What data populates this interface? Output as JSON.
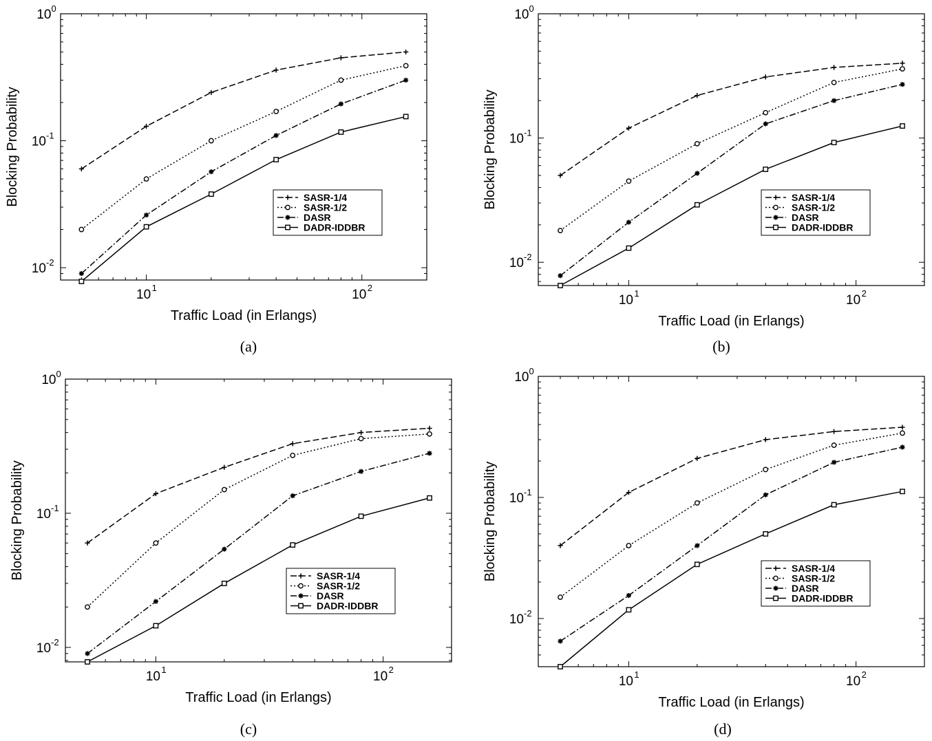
{
  "chart_data": [
    {
      "panel": "a",
      "caption": "(a)",
      "type": "line",
      "xscale": "log",
      "yscale": "log",
      "xlabel": "Traffic Load (in Erlangs)",
      "ylabel": "Blocking Probability",
      "xlim": [
        4,
        200
      ],
      "ylim": [
        0.008,
        1
      ],
      "x_ticks": [
        {
          "v": 10,
          "base": "10",
          "exp": "1"
        },
        {
          "v": 100,
          "base": "10",
          "exp": "2"
        }
      ],
      "y_ticks": [
        {
          "v": 0.01,
          "base": "10",
          "exp": "-2"
        },
        {
          "v": 0.1,
          "base": "10",
          "exp": "-1"
        },
        {
          "v": 1,
          "base": "10",
          "exp": "0"
        }
      ],
      "grid": false,
      "legend_position": "center-right",
      "x": [
        5,
        10,
        20,
        40,
        80,
        160
      ],
      "series": [
        {
          "name": "SASR-1/4",
          "values": [
            0.06,
            0.13,
            0.24,
            0.36,
            0.45,
            0.5
          ]
        },
        {
          "name": "SASR-1/2",
          "values": [
            0.02,
            0.05,
            0.1,
            0.17,
            0.3,
            0.39
          ]
        },
        {
          "name": "DASR",
          "values": [
            0.009,
            0.026,
            0.057,
            0.11,
            0.195,
            0.3
          ]
        },
        {
          "name": "DADR-IDDBR",
          "values": [
            0.0078,
            0.021,
            0.038,
            0.071,
            0.117,
            0.155
          ]
        }
      ]
    },
    {
      "panel": "b",
      "caption": "(b)",
      "type": "line",
      "xscale": "log",
      "yscale": "log",
      "xlabel": "Traffic Load (in Erlangs)",
      "ylabel": "Blocking Probability",
      "xlim": [
        4,
        200
      ],
      "ylim": [
        0.0065,
        1
      ],
      "x_ticks": [
        {
          "v": 10,
          "base": "10",
          "exp": "1"
        },
        {
          "v": 100,
          "base": "10",
          "exp": "2"
        }
      ],
      "y_ticks": [
        {
          "v": 0.01,
          "base": "10",
          "exp": "-2"
        },
        {
          "v": 0.1,
          "base": "10",
          "exp": "-1"
        },
        {
          "v": 1,
          "base": "10",
          "exp": "0"
        }
      ],
      "grid": false,
      "legend_position": "center-right",
      "x": [
        5,
        10,
        20,
        40,
        80,
        160
      ],
      "series": [
        {
          "name": "SASR-1/4",
          "values": [
            0.05,
            0.12,
            0.22,
            0.31,
            0.37,
            0.4
          ]
        },
        {
          "name": "SASR-1/2",
          "values": [
            0.018,
            0.045,
            0.09,
            0.16,
            0.28,
            0.36
          ]
        },
        {
          "name": "DASR",
          "values": [
            0.0078,
            0.021,
            0.052,
            0.13,
            0.2,
            0.27
          ]
        },
        {
          "name": "DADR-IDDBR",
          "values": [
            0.0065,
            0.013,
            0.029,
            0.056,
            0.092,
            0.125
          ]
        }
      ]
    },
    {
      "panel": "c",
      "caption": "(c)",
      "type": "line",
      "xscale": "log",
      "yscale": "log",
      "xlabel": "Traffic Load (in Erlangs)",
      "ylabel": "Blocking Probability",
      "xlim": [
        4,
        200
      ],
      "ylim": [
        0.0078,
        1
      ],
      "x_ticks": [
        {
          "v": 10,
          "base": "10",
          "exp": "1"
        },
        {
          "v": 100,
          "base": "10",
          "exp": "2"
        }
      ],
      "y_ticks": [
        {
          "v": 0.01,
          "base": "10",
          "exp": "-2"
        },
        {
          "v": 0.1,
          "base": "10",
          "exp": "-1"
        },
        {
          "v": 1,
          "base": "10",
          "exp": "0"
        }
      ],
      "grid": false,
      "legend_position": "bottom-right",
      "x": [
        5,
        10,
        20,
        40,
        80,
        160
      ],
      "series": [
        {
          "name": "SASR-1/4",
          "values": [
            0.06,
            0.14,
            0.22,
            0.33,
            0.4,
            0.43
          ]
        },
        {
          "name": "SASR-1/2",
          "values": [
            0.02,
            0.06,
            0.15,
            0.27,
            0.36,
            0.39
          ]
        },
        {
          "name": "DASR",
          "values": [
            0.009,
            0.022,
            0.054,
            0.135,
            0.205,
            0.28
          ]
        },
        {
          "name": "DADR-IDDBR",
          "values": [
            0.0078,
            0.0145,
            0.03,
            0.058,
            0.095,
            0.13
          ]
        }
      ]
    },
    {
      "panel": "d",
      "caption": "(d)",
      "type": "line",
      "xscale": "log",
      "yscale": "log",
      "xlabel": "Traffic Load (in Erlangs)",
      "ylabel": "Blocking Probability",
      "xlim": [
        4,
        200
      ],
      "ylim": [
        0.004,
        1
      ],
      "x_ticks": [
        {
          "v": 10,
          "base": "10",
          "exp": "1"
        },
        {
          "v": 100,
          "base": "10",
          "exp": "2"
        }
      ],
      "y_ticks": [
        {
          "v": 0.01,
          "base": "10",
          "exp": "-2"
        },
        {
          "v": 0.1,
          "base": "10",
          "exp": "-1"
        },
        {
          "v": 1,
          "base": "10",
          "exp": "0"
        }
      ],
      "grid": false,
      "legend_position": "bottom-right",
      "x": [
        5,
        10,
        20,
        40,
        80,
        160
      ],
      "series": [
        {
          "name": "SASR-1/4",
          "values": [
            0.04,
            0.11,
            0.21,
            0.3,
            0.35,
            0.38
          ]
        },
        {
          "name": "SASR-1/2",
          "values": [
            0.015,
            0.04,
            0.09,
            0.17,
            0.27,
            0.34
          ]
        },
        {
          "name": "DASR",
          "values": [
            0.0065,
            0.0155,
            0.04,
            0.105,
            0.195,
            0.26
          ]
        },
        {
          "name": "DADR-IDDBR",
          "values": [
            0.004,
            0.0118,
            0.028,
            0.05,
            0.087,
            0.112
          ]
        }
      ]
    }
  ]
}
